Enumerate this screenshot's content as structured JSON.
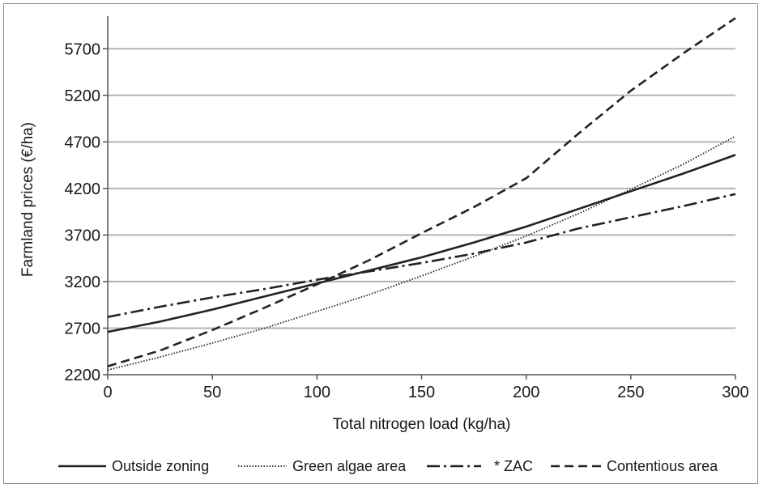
{
  "chart_data": {
    "type": "line",
    "title": "",
    "xlabel": "Total nitrogen load (kg/ha)",
    "ylabel": "Farmland prices (€/ha)",
    "xlim": [
      0,
      300
    ],
    "ylim": [
      2200,
      6050
    ],
    "x_ticks": [
      "0",
      "50",
      "100",
      "150",
      "200",
      "250",
      "300"
    ],
    "y_ticks": [
      "2200",
      "2700",
      "3200",
      "3700",
      "4200",
      "4700",
      "5200",
      "5700"
    ],
    "grid": "horizontal",
    "legend_position": "bottom",
    "x": [
      0,
      25,
      50,
      75,
      100,
      125,
      150,
      175,
      200,
      225,
      250,
      275,
      300
    ],
    "series": [
      {
        "name": "Outside zoning",
        "style": "solid",
        "color": "#222222",
        "values": [
          2660,
          2770,
          2900,
          3040,
          3180,
          3320,
          3460,
          3620,
          3790,
          3980,
          4170,
          4360,
          4560
        ]
      },
      {
        "name": "Green algae area",
        "style": "dotted",
        "color": "#222222",
        "values": [
          2250,
          2390,
          2540,
          2700,
          2880,
          3060,
          3260,
          3470,
          3690,
          3930,
          4190,
          4460,
          4760
        ]
      },
      {
        "name": "* ZAC",
        "style": "dash-dot",
        "color": "#222222",
        "values": [
          2820,
          2930,
          3030,
          3120,
          3220,
          3310,
          3400,
          3500,
          3620,
          3770,
          3890,
          4010,
          4140
        ]
      },
      {
        "name": "Contentious area",
        "style": "dashed",
        "color": "#222222",
        "values": [
          2290,
          2460,
          2680,
          2920,
          3170,
          3430,
          3720,
          4000,
          4310,
          4790,
          5250,
          5650,
          6030
        ]
      }
    ]
  }
}
